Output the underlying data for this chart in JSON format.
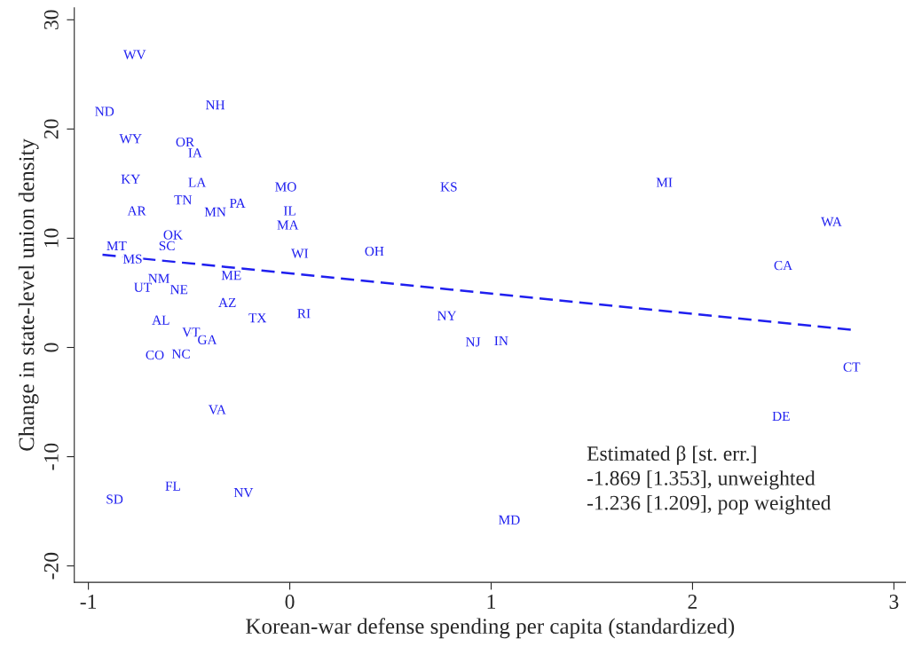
{
  "chart_data": {
    "type": "scatter",
    "xlabel": "Korean-war defense spending per capita (standardized)",
    "ylabel": "Change in state-level union density",
    "xlim": [
      -1.07,
      3.06
    ],
    "ylim": [
      -21.5,
      31.1
    ],
    "xticks": [
      -1,
      0,
      1,
      2,
      3
    ],
    "yticks": [
      -20,
      -10,
      0,
      10,
      20,
      30
    ],
    "grid": false,
    "legend": false,
    "series": [
      {
        "marker": "none",
        "color": "#1f1fef",
        "x": [
          -0.77,
          -0.92,
          -0.37,
          -0.79,
          -0.52,
          -0.47,
          -0.79,
          -0.46,
          -0.02,
          0.79,
          1.86,
          -0.53,
          -0.26,
          -0.37,
          -0.76,
          0.0,
          -0.01,
          2.69,
          -0.58,
          -0.61,
          -0.86,
          -0.78,
          0.05,
          0.42,
          2.45,
          -0.29,
          -0.65,
          -0.73,
          -0.55,
          -0.31,
          -0.64,
          -0.16,
          0.07,
          0.78,
          -0.49,
          -0.41,
          0.91,
          1.05,
          -0.67,
          -0.54,
          2.79,
          -0.36,
          2.44,
          -0.58,
          -0.23,
          -0.87,
          1.09
        ],
        "values": [
          26.7,
          21.5,
          22.1,
          19.0,
          18.7,
          17.7,
          15.3,
          15.0,
          14.6,
          14.6,
          15.0,
          13.4,
          13.1,
          12.3,
          12.4,
          12.4,
          11.1,
          11.4,
          10.2,
          9.2,
          9.2,
          8.0,
          8.5,
          8.7,
          7.4,
          6.5,
          6.2,
          5.4,
          5.2,
          4.0,
          2.4,
          2.6,
          3.0,
          2.8,
          1.3,
          0.6,
          0.4,
          0.5,
          -0.8,
          -0.7,
          -1.9,
          -5.8,
          -6.4,
          -12.8,
          -13.4,
          -14.0,
          -15.9
        ],
        "value_labels": [
          "WV",
          "ND",
          "NH",
          "WY",
          "OR",
          "IA",
          "KY",
          "LA",
          "MO",
          "KS",
          "MI",
          "TN",
          "PA",
          "MN",
          "AR",
          "IL",
          "MA",
          "WA",
          "OK",
          "SC",
          "MT",
          "MS",
          "WI",
          "OH",
          "CA",
          "ME",
          "NM",
          "UT",
          "NE",
          "AZ",
          "AL",
          "TX",
          "RI",
          "NY",
          "VT",
          "GA",
          "NJ",
          "IN",
          "CO",
          "NC",
          "CT",
          "VA",
          "DE",
          "FL",
          "NV",
          "SD",
          "MD"
        ]
      },
      {
        "type": "line",
        "line_style": "dashed",
        "color": "#1f1fef",
        "x": [
          -0.93,
          2.8
        ],
        "values": [
          8.5,
          1.6
        ]
      }
    ],
    "annotations": [
      "Estimated β [st. err.]",
      "-1.869 [1.353], unweighted",
      "-1.236 [1.209], pop weighted"
    ]
  }
}
